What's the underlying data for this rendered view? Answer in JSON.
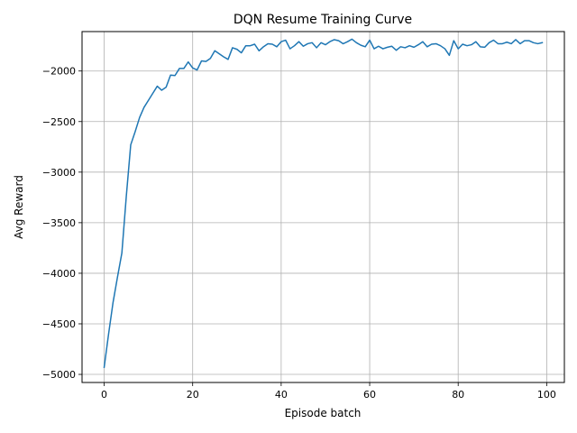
{
  "chart_data": {
    "type": "line",
    "title": "DQN Resume Training Curve",
    "xlabel": "Episode batch",
    "ylabel": "Avg Reward",
    "xlim": [
      -5,
      104
    ],
    "ylim": [
      -5080,
      -1610
    ],
    "xticks": [
      0,
      20,
      40,
      60,
      80,
      100
    ],
    "yticks": [
      -5000,
      -4500,
      -4000,
      -3500,
      -3000,
      -2500,
      -2000
    ],
    "xtick_labels": [
      "0",
      "20",
      "40",
      "60",
      "80",
      "100"
    ],
    "ytick_labels": [
      "−5000",
      "−4500",
      "−4000",
      "−3500",
      "−3000",
      "−2500",
      "−2000"
    ],
    "grid": true,
    "line_color": "#1f77b4",
    "series": [
      {
        "x": [
          0,
          1,
          2,
          3,
          4,
          5,
          6,
          7,
          8,
          9,
          10,
          11,
          12,
          13,
          14,
          15,
          16,
          17,
          18,
          19,
          20,
          21,
          22,
          23,
          24,
          25,
          26,
          27,
          28,
          29,
          30,
          31,
          32,
          33,
          34,
          35,
          36,
          37,
          38,
          39,
          40,
          41,
          42,
          43,
          44,
          45,
          46,
          47,
          48,
          49,
          50,
          51,
          52,
          53,
          54,
          55,
          56,
          57,
          58,
          59,
          60,
          61,
          62,
          63,
          64,
          65,
          66,
          67,
          68,
          69,
          70,
          71,
          72,
          73,
          74,
          75,
          76,
          77,
          78,
          79,
          80,
          81,
          82,
          83,
          84,
          85,
          86,
          87,
          88,
          89,
          90,
          91,
          92,
          93,
          94,
          95,
          96,
          97,
          98,
          99
        ],
        "values": [
          -4930,
          -4600,
          -4290,
          -4040,
          -3800,
          -3240,
          -2730,
          -2600,
          -2460,
          -2360,
          -2290,
          -2220,
          -2150,
          -2190,
          -2160,
          -2040,
          -2045,
          -1975,
          -1975,
          -1910,
          -1970,
          -1990,
          -1900,
          -1905,
          -1875,
          -1800,
          -1830,
          -1860,
          -1885,
          -1770,
          -1785,
          -1820,
          -1750,
          -1750,
          -1735,
          -1800,
          -1760,
          -1730,
          -1735,
          -1760,
          -1710,
          -1695,
          -1780,
          -1750,
          -1710,
          -1755,
          -1730,
          -1720,
          -1770,
          -1720,
          -1740,
          -1710,
          -1690,
          -1700,
          -1730,
          -1710,
          -1685,
          -1720,
          -1745,
          -1760,
          -1695,
          -1780,
          -1755,
          -1780,
          -1765,
          -1755,
          -1795,
          -1760,
          -1770,
          -1750,
          -1765,
          -1740,
          -1710,
          -1760,
          -1735,
          -1730,
          -1750,
          -1780,
          -1845,
          -1700,
          -1780,
          -1735,
          -1750,
          -1740,
          -1710,
          -1760,
          -1765,
          -1720,
          -1695,
          -1730,
          -1730,
          -1715,
          -1730,
          -1690,
          -1730,
          -1700,
          -1700,
          -1720,
          -1730,
          -1720
        ]
      }
    ]
  }
}
